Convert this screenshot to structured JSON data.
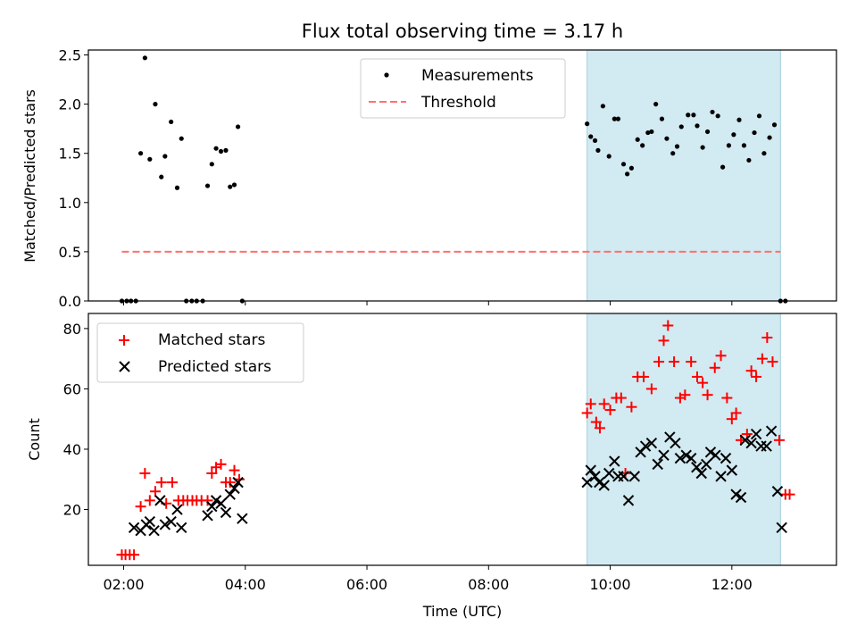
{
  "chart_data": [
    {
      "type": "scatter",
      "title": "Flux total observing time = 3.17 h",
      "xlabel": "",
      "ylabel": "Matched/Predicted stars",
      "ylim": [
        0,
        2.55
      ],
      "yticks": [
        "0.0",
        "0.5",
        "1.0",
        "1.5",
        "2.0",
        "2.5"
      ],
      "ytick_values": [
        0,
        0.5,
        1.0,
        1.5,
        2.0,
        2.5
      ],
      "xlim_hours": [
        1.42,
        13.72
      ],
      "shaded_span_hours": [
        9.62,
        12.8
      ],
      "shade_color": "#add8e6",
      "legend_position": "top-center",
      "series": [
        {
          "name": "Measurements",
          "kind": "points",
          "color": "#000000",
          "x_hours": [
            1.97,
            2.05,
            2.12,
            2.2,
            2.28,
            2.35,
            2.43,
            2.52,
            2.62,
            2.68,
            2.78,
            2.88,
            2.95,
            3.03,
            3.12,
            3.2,
            3.3,
            3.38,
            3.45,
            3.52,
            3.6,
            3.68,
            3.75,
            3.82,
            3.88,
            3.95,
            9.62,
            9.68,
            9.75,
            9.8,
            9.88,
            9.98,
            10.07,
            10.13,
            10.22,
            10.28,
            10.35,
            10.45,
            10.53,
            10.62,
            10.68,
            10.75,
            10.85,
            10.93,
            11.03,
            11.1,
            11.17,
            11.28,
            11.37,
            11.43,
            11.52,
            11.6,
            11.68,
            11.77,
            11.85,
            11.95,
            12.03,
            12.12,
            12.2,
            12.28,
            12.37,
            12.45,
            12.53,
            12.62,
            12.7,
            12.8,
            12.88
          ],
          "values": [
            0,
            0,
            0,
            0,
            1.5,
            2.47,
            1.44,
            2.0,
            1.26,
            1.47,
            1.82,
            1.15,
            1.65,
            0,
            0,
            0,
            0,
            1.17,
            1.39,
            1.55,
            1.52,
            1.53,
            1.16,
            1.18,
            1.77,
            0,
            1.8,
            1.67,
            1.63,
            1.53,
            1.98,
            1.47,
            1.85,
            1.85,
            1.39,
            1.29,
            1.35,
            1.64,
            1.58,
            1.71,
            1.72,
            2.0,
            1.85,
            1.65,
            1.5,
            1.57,
            1.77,
            1.89,
            1.89,
            1.78,
            1.56,
            1.72,
            1.92,
            1.88,
            1.36,
            1.58,
            1.69,
            1.84,
            1.58,
            1.43,
            1.71,
            1.88,
            1.5,
            1.66,
            1.79,
            0,
            0
          ]
        },
        {
          "name": "Threshold",
          "kind": "dashed-line",
          "color": "#ff6f6f",
          "x_hours": [
            1.97,
            12.8
          ],
          "values": [
            0.5,
            0.5
          ]
        }
      ]
    },
    {
      "type": "scatter",
      "title": "",
      "xlabel": "Time (UTC)",
      "ylabel": "Count",
      "ylim": [
        1.5,
        85
      ],
      "yticks": [
        "20",
        "40",
        "60",
        "80"
      ],
      "ytick_values": [
        20,
        40,
        60,
        80
      ],
      "xticks": [
        "02:00",
        "04:00",
        "06:00",
        "08:00",
        "10:00",
        "12:00"
      ],
      "xtick_values_hours": [
        2,
        4,
        6,
        8,
        10,
        12
      ],
      "xlim_hours": [
        1.42,
        13.72
      ],
      "shaded_span_hours": [
        9.62,
        12.8
      ],
      "shade_color": "#add8e6",
      "legend_position": "top-left",
      "series": [
        {
          "name": "Matched stars",
          "marker": "plus",
          "color": "#ff0000",
          "x_hours": [
            1.97,
            2.03,
            2.1,
            2.17,
            2.28,
            2.35,
            2.43,
            2.52,
            2.62,
            2.7,
            2.8,
            2.9,
            2.98,
            3.05,
            3.13,
            3.2,
            3.28,
            3.38,
            3.45,
            3.52,
            3.6,
            3.68,
            3.75,
            3.82,
            3.9,
            9.62,
            9.68,
            9.77,
            9.83,
            9.9,
            10.0,
            10.1,
            10.18,
            10.25,
            10.35,
            10.45,
            10.55,
            10.68,
            10.8,
            10.88,
            10.95,
            11.05,
            11.15,
            11.23,
            11.33,
            11.43,
            11.52,
            11.6,
            11.72,
            11.82,
            11.92,
            12.0,
            12.07,
            12.15,
            12.25,
            12.32,
            12.4,
            12.5,
            12.58,
            12.67,
            12.78,
            12.88,
            12.95
          ],
          "values": [
            5,
            5,
            5,
            5,
            21,
            32,
            23,
            26,
            29,
            22,
            29,
            23,
            23,
            23,
            23,
            23,
            23,
            23,
            32,
            34,
            35,
            29,
            29,
            33,
            30,
            52,
            55,
            49,
            47,
            55,
            53,
            57,
            57,
            32,
            54,
            64,
            64,
            60,
            69,
            76,
            81,
            69,
            57,
            58,
            69,
            64,
            62,
            58,
            67,
            71,
            57,
            50,
            52,
            43,
            45,
            66,
            64,
            70,
            77,
            69,
            43,
            25,
            25
          ]
        },
        {
          "name": "Predicted stars",
          "marker": "x",
          "color": "#000000",
          "x_hours": [
            2.17,
            2.28,
            2.37,
            2.43,
            2.5,
            2.6,
            2.68,
            2.78,
            2.88,
            2.95,
            3.38,
            3.45,
            3.52,
            3.6,
            3.68,
            3.75,
            3.82,
            3.88,
            3.95,
            9.62,
            9.68,
            9.75,
            9.82,
            9.9,
            9.98,
            10.07,
            10.13,
            10.22,
            10.3,
            10.4,
            10.5,
            10.58,
            10.68,
            10.78,
            10.88,
            10.98,
            11.07,
            11.15,
            11.25,
            11.33,
            11.42,
            11.5,
            11.58,
            11.65,
            11.73,
            11.82,
            11.9,
            12.0,
            12.07,
            12.15,
            12.22,
            12.32,
            12.4,
            12.48,
            12.57,
            12.65,
            12.75,
            12.82
          ],
          "values": [
            14,
            13,
            15,
            16,
            13,
            23,
            15,
            16,
            20,
            14,
            18,
            21,
            23,
            22,
            19,
            25,
            27,
            29,
            17,
            29,
            33,
            31,
            29,
            28,
            32,
            36,
            31,
            31,
            23,
            31,
            39,
            41,
            42,
            35,
            38,
            44,
            42,
            37,
            38,
            37,
            34,
            32,
            35,
            39,
            38,
            31,
            37,
            33,
            25,
            24,
            43,
            42,
            45,
            41,
            41,
            46,
            26,
            14
          ]
        }
      ]
    }
  ]
}
